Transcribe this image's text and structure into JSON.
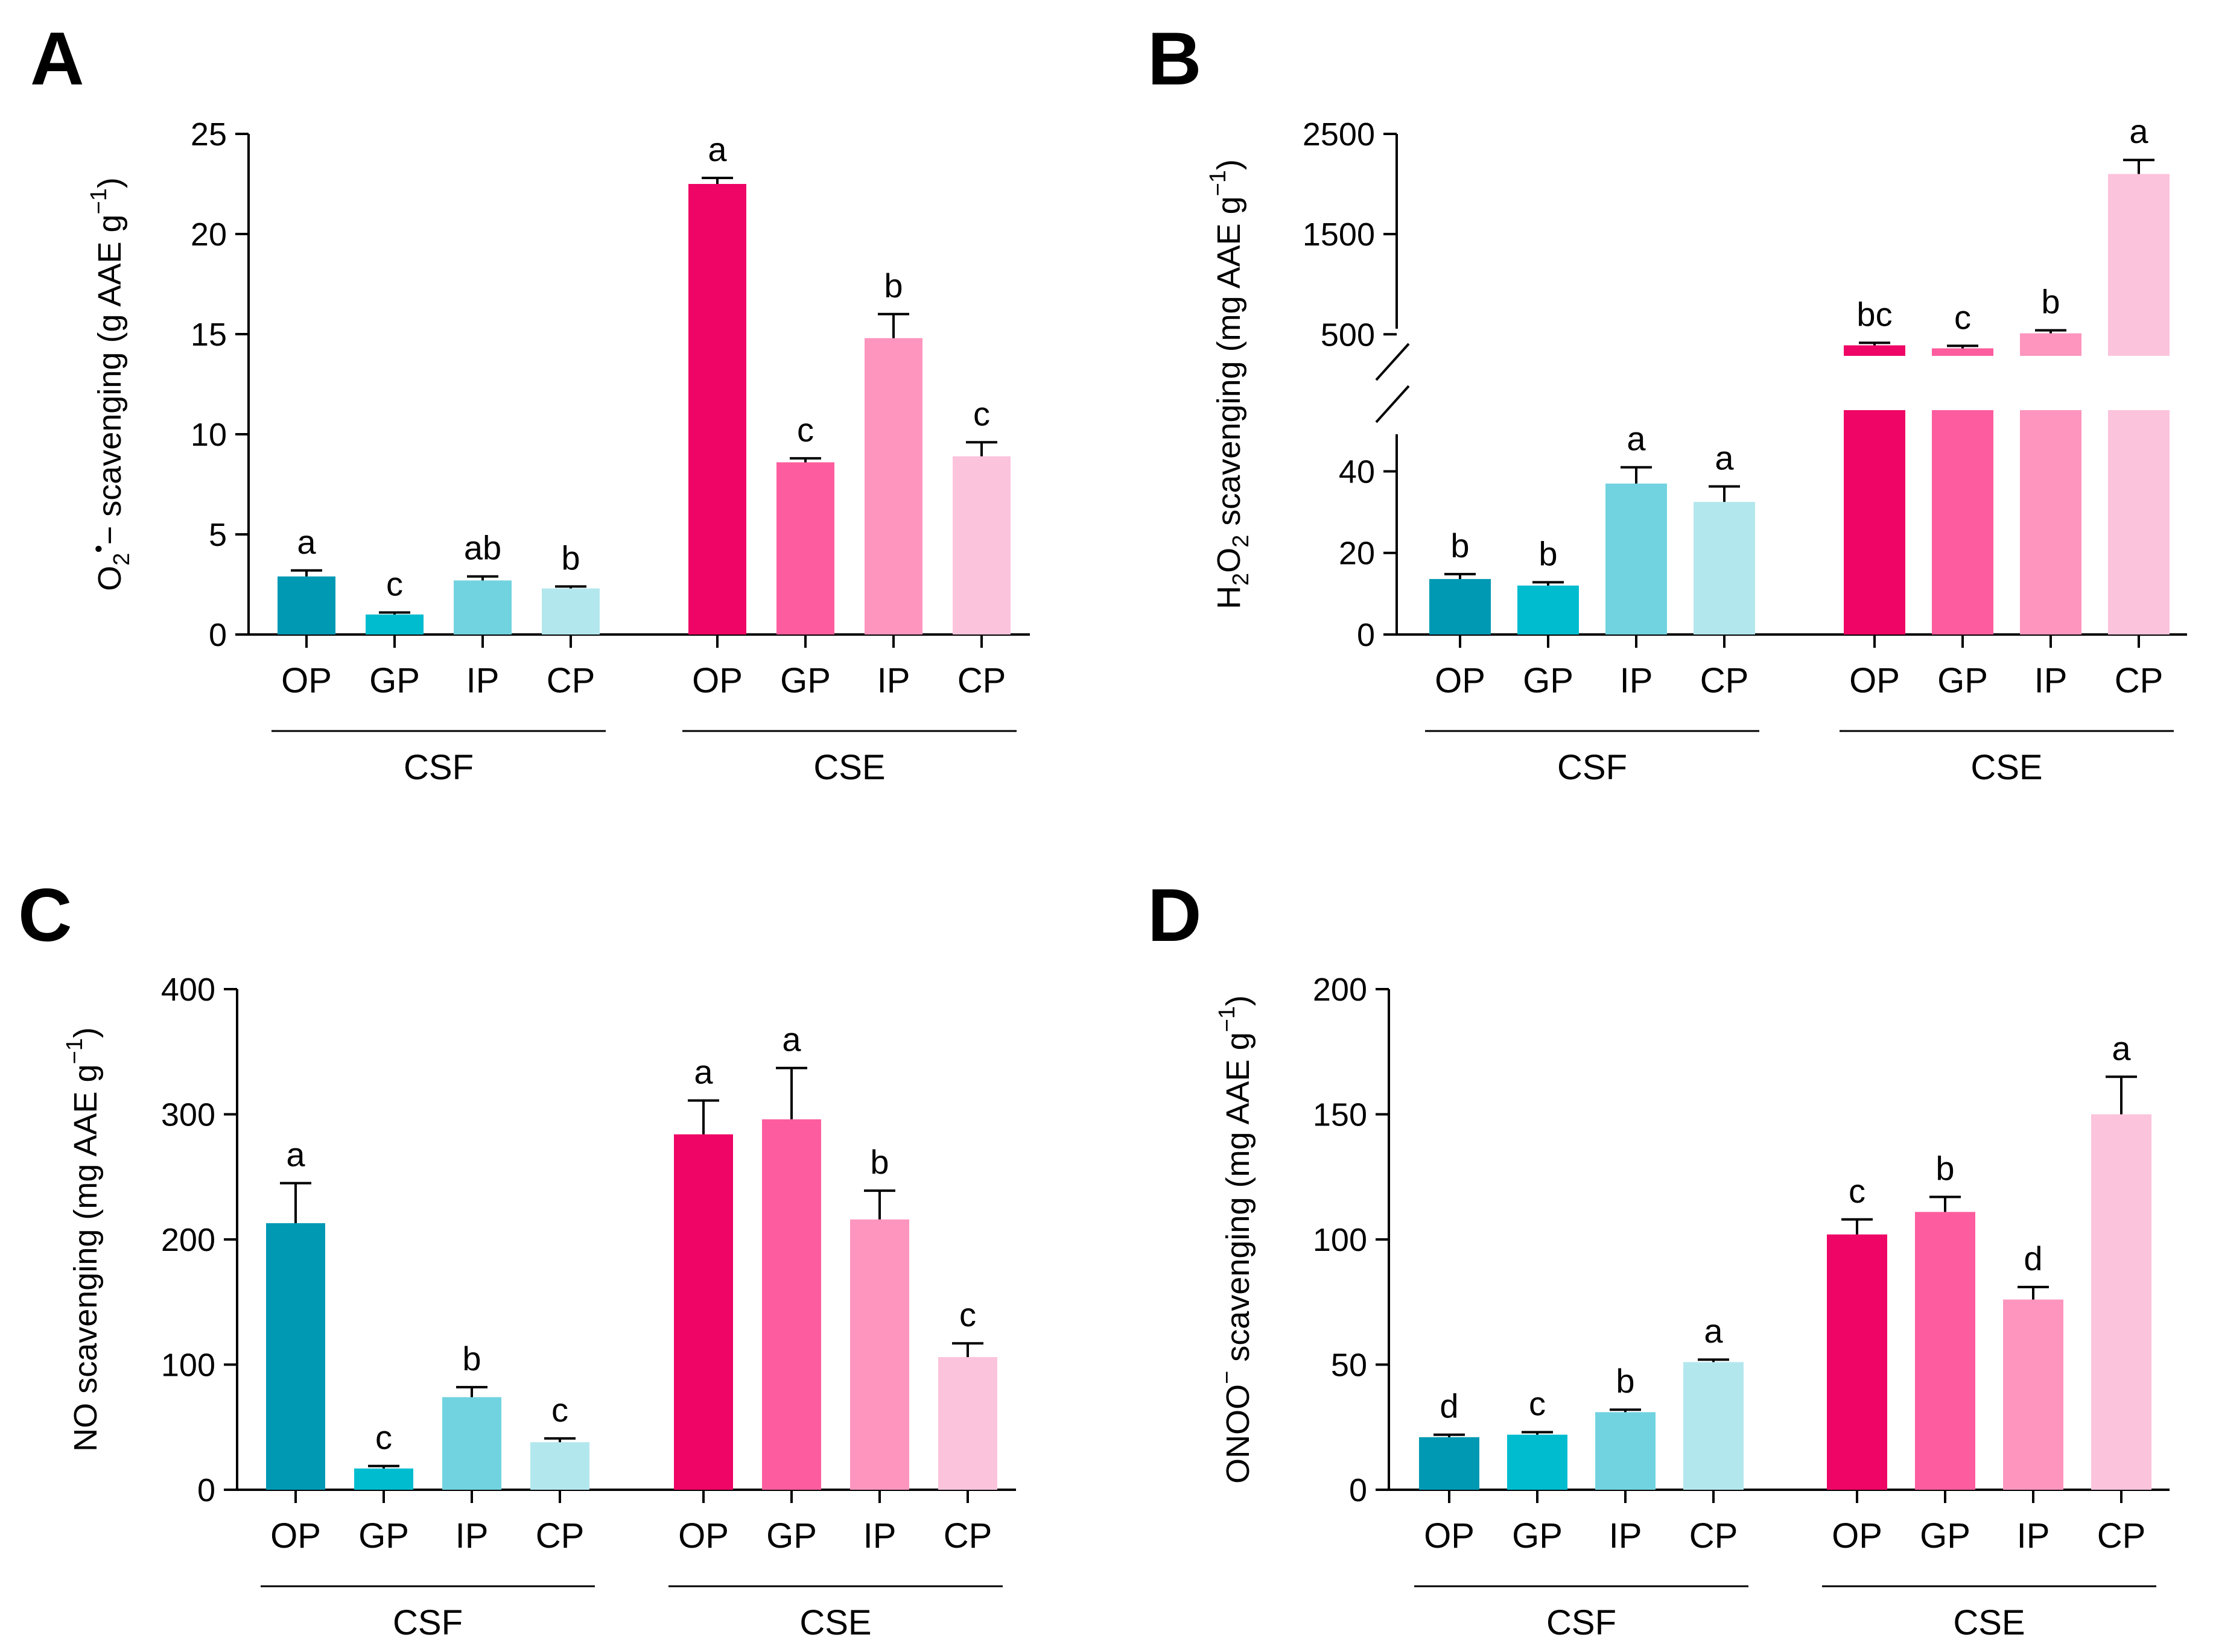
{
  "chart_data": [
    {
      "type": "bar",
      "panel": "A",
      "ylabel": {
        "parts": [
          {
            "t": "O"
          },
          {
            "t": "2",
            "sub": true
          },
          {
            "t": "•",
            "sup": true
          },
          {
            "t": "− scavenging (g AAE g"
          },
          {
            "t": "−1",
            "sup": true
          },
          {
            "t": ")"
          }
        ]
      },
      "ylim": [
        0,
        25
      ],
      "yticks": [
        0,
        5,
        10,
        15,
        20,
        25
      ],
      "groups": [
        {
          "label": "CSF",
          "categories": [
            "OP",
            "GP",
            "IP",
            "CP"
          ],
          "values": [
            2.9,
            1.0,
            2.7,
            2.3
          ],
          "errors": [
            0.3,
            0.1,
            0.2,
            0.1
          ],
          "letters": [
            "a",
            "c",
            "ab",
            "b"
          ]
        },
        {
          "label": "CSE",
          "categories": [
            "OP",
            "GP",
            "IP",
            "CP"
          ],
          "values": [
            22.5,
            8.6,
            14.8,
            8.9
          ],
          "errors": [
            0.3,
            0.2,
            1.2,
            0.7
          ],
          "letters": [
            "a",
            "c",
            "b",
            "c"
          ]
        }
      ]
    },
    {
      "type": "bar",
      "panel": "B",
      "axis_break": true,
      "ylabel": {
        "parts": [
          {
            "t": "H"
          },
          {
            "t": "2",
            "sub": true
          },
          {
            "t": "O"
          },
          {
            "t": "2",
            "sub": true
          },
          {
            "t": " scavenging (mg AAE g"
          },
          {
            "t": "−1",
            "sup": true
          },
          {
            "t": ")"
          }
        ]
      },
      "ylim_lower": [
        0,
        55
      ],
      "yticks_lower": [
        0,
        20,
        40
      ],
      "ylim_upper": [
        285,
        2500
      ],
      "yticks_upper": [
        500,
        1500,
        2500
      ],
      "groups": [
        {
          "label": "CSF",
          "categories": [
            "OP",
            "GP",
            "IP",
            "CP"
          ],
          "values": [
            13.6,
            12.0,
            37.0,
            32.5
          ],
          "errors": [
            1.2,
            0.8,
            4.0,
            3.8
          ],
          "letters": [
            "b",
            "b",
            "a",
            "a"
          ]
        },
        {
          "label": "CSE",
          "categories": [
            "OP",
            "GP",
            "IP",
            "CP"
          ],
          "values": [
            390,
            360,
            510,
            2100
          ],
          "errors": [
            25,
            25,
            30,
            140
          ],
          "letters": [
            "bc",
            "c",
            "b",
            "a"
          ]
        }
      ]
    },
    {
      "type": "bar",
      "panel": "C",
      "ylabel": {
        "parts": [
          {
            "t": "NO scavenging (mg AAE g"
          },
          {
            "t": "−1",
            "sup": true
          },
          {
            "t": ")"
          }
        ]
      },
      "ylim": [
        0,
        400
      ],
      "yticks": [
        0,
        100,
        200,
        300,
        400
      ],
      "groups": [
        {
          "label": "CSF",
          "categories": [
            "OP",
            "GP",
            "IP",
            "CP"
          ],
          "values": [
            213,
            17,
            74,
            38
          ],
          "errors": [
            32,
            2,
            8,
            3
          ],
          "letters": [
            "a",
            "c",
            "b",
            "c"
          ]
        },
        {
          "label": "CSE",
          "categories": [
            "OP",
            "GP",
            "IP",
            "CP"
          ],
          "values": [
            284,
            296,
            216,
            106
          ],
          "errors": [
            27,
            41,
            23,
            11
          ],
          "letters": [
            "a",
            "a",
            "b",
            "c"
          ]
        }
      ]
    },
    {
      "type": "bar",
      "panel": "D",
      "ylabel": {
        "parts": [
          {
            "t": "ONOO"
          },
          {
            "t": "−",
            "sup": true
          },
          {
            "t": " scavenging (mg AAE g"
          },
          {
            "t": "−1",
            "sup": true
          },
          {
            "t": ")"
          }
        ]
      },
      "ylim": [
        0,
        200
      ],
      "yticks": [
        0,
        50,
        100,
        150,
        200
      ],
      "groups": [
        {
          "label": "CSF",
          "categories": [
            "OP",
            "GP",
            "IP",
            "CP"
          ],
          "values": [
            21,
            22,
            31,
            51
          ],
          "errors": [
            1,
            1,
            1,
            1
          ],
          "letters": [
            "d",
            "c",
            "b",
            "a"
          ]
        },
        {
          "label": "CSE",
          "categories": [
            "OP",
            "GP",
            "IP",
            "CP"
          ],
          "values": [
            102,
            111,
            76,
            150
          ],
          "errors": [
            6,
            6,
            5,
            15
          ],
          "letters": [
            "c",
            "b",
            "d",
            "a"
          ]
        }
      ]
    }
  ],
  "colors": {
    "CSF": [
      "#0099b4",
      "#00bccf",
      "#72d3e0",
      "#b3e7ee"
    ],
    "CSE": [
      "#ee0565",
      "#fd5d9e",
      "#fd95be",
      "#fcc3dc"
    ]
  }
}
